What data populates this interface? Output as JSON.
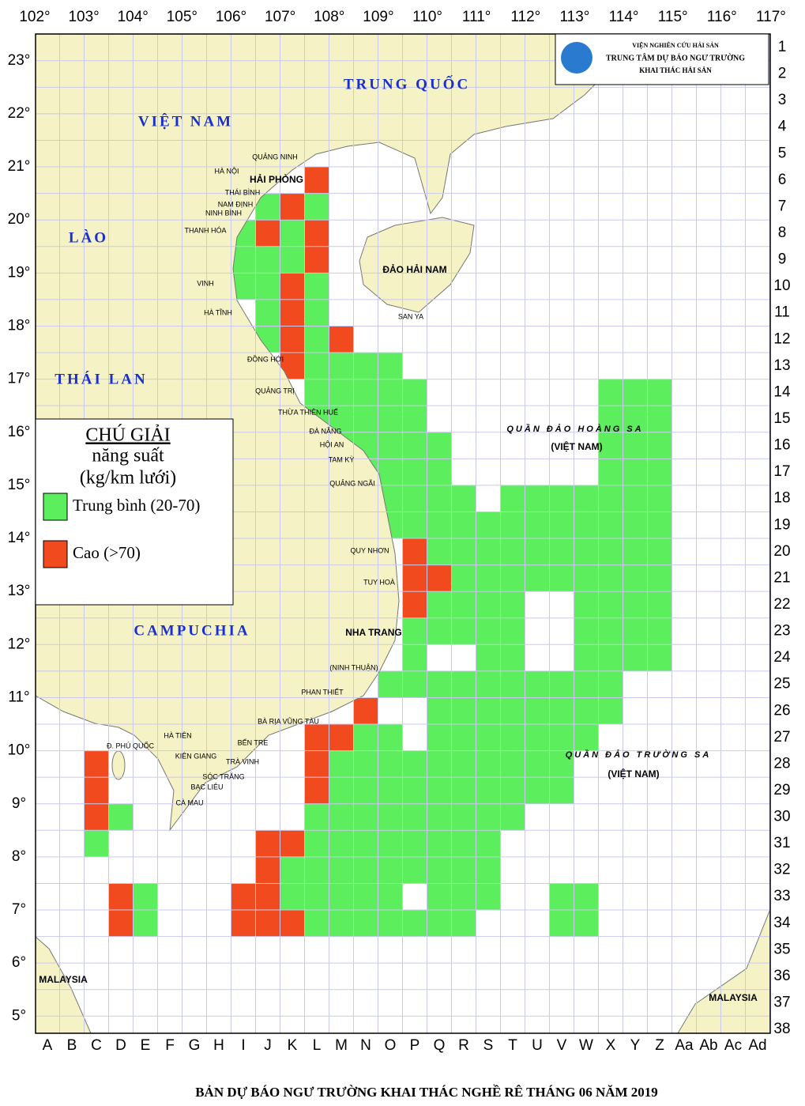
{
  "header": {
    "lines": [
      "VIỆN NGHIÊN CỨU HẢI SẢN",
      "TRUNG TÂM DỰ BÁO NGƯ TRƯỜNG",
      "KHAI THÁC HẢI SẢN"
    ]
  },
  "title": "BẢN DỰ BÁO NGƯ TRƯỜNG KHAI THÁC NGHỀ RÊ THÁNG 06 NĂM 2019",
  "lon_labels": [
    "102°",
    "103°",
    "104°",
    "105°",
    "106°",
    "107°",
    "108°",
    "109°",
    "110°",
    "111°",
    "112°",
    "113°",
    "114°",
    "115°",
    "116°",
    "117°"
  ],
  "lat_labels": [
    "23°",
    "22°",
    "21°",
    "20°",
    "19°",
    "18°",
    "17°",
    "16°",
    "15°",
    "14°",
    "13°",
    "12°",
    "11°",
    "10°",
    "9°",
    "8°",
    "7°",
    "6°",
    "5°"
  ],
  "col_labels": [
    "A",
    "B",
    "C",
    "D",
    "E",
    "F",
    "G",
    "H",
    "I",
    "J",
    "K",
    "L",
    "M",
    "N",
    "O",
    "P",
    "Q",
    "R",
    "S",
    "T",
    "U",
    "V",
    "W",
    "X",
    "Y",
    "Z",
    "Aa",
    "Ab",
    "Ac",
    "Ad"
  ],
  "row_labels": [
    1,
    2,
    3,
    4,
    5,
    6,
    7,
    8,
    9,
    10,
    11,
    12,
    13,
    14,
    15,
    16,
    17,
    18,
    19,
    20,
    21,
    22,
    23,
    24,
    25,
    26,
    27,
    28,
    29,
    30,
    31,
    32,
    33,
    34,
    35,
    36,
    37,
    38
  ],
  "places": [
    "TRUNG QUỐC",
    "VIỆT NAM",
    "LÀO",
    "THÁI LAN",
    "CAMPUCHIA",
    "ĐẢO HẢI NAM",
    "SAN YA",
    "HẢI PHÒNG",
    "NHA TRANG",
    "QUẦN ĐẢO HOÀNG SA",
    "(VIỆT NAM)",
    "QUẦN ĐẢO TRƯỜNG SA",
    "(VIỆT NAM)",
    "MALAYSIA",
    "MALAYSIA",
    "QUẢNG NINH",
    "HÀ NỘI",
    "THÁI BÌNH",
    "NAM ĐỊNH",
    "NINH BÌNH",
    "THANH HÓA",
    "VINH",
    "HÀ TĨNH",
    "ĐỒNG HỚI",
    "QUẢNG TRỊ",
    "THỪA THIÊN HUẾ",
    "ĐÀ NẴNG",
    "HỘI AN",
    "TAM KỲ",
    "QUẢNG NGÃI",
    "QUY NHƠN",
    "TUY HOÀ",
    "(NINH THUẬN)",
    "PHAN THIẾT",
    "BÀ RỊA VŨNG TÀU",
    "BẾN TRE",
    "TRÀ VINH",
    "SÓC TRĂNG",
    "BẠC LIÊU",
    "CÀ MAU",
    "KIÊN GIANG",
    "HÀ TIÊN",
    "Đ. PHÚ QUỐC"
  ],
  "legend": {
    "title": "CHÚ GIẢI",
    "lines": [
      "năng suất",
      "(kg/km lưới)"
    ],
    "items": [
      {
        "label": "Trung bình (20-70)",
        "color": "#5cee5c",
        "cells": [
          [
            "L",
            7
          ],
          [
            "J",
            7
          ],
          [
            "I",
            8
          ],
          [
            "K",
            8
          ],
          [
            "I",
            9
          ],
          [
            "J",
            9
          ],
          [
            "K",
            9
          ],
          [
            "I",
            10
          ],
          [
            "J",
            10
          ],
          [
            "L",
            10
          ],
          [
            "J",
            11
          ],
          [
            "L",
            11
          ],
          [
            "J",
            12
          ],
          [
            "L",
            12
          ],
          [
            "L",
            13
          ],
          [
            "M",
            13
          ],
          [
            "N",
            13
          ],
          [
            "O",
            13
          ],
          [
            "L",
            14
          ],
          [
            "M",
            14
          ],
          [
            "N",
            14
          ],
          [
            "O",
            14
          ],
          [
            "P",
            14
          ],
          [
            "X",
            14
          ],
          [
            "Y",
            14
          ],
          [
            "Z",
            14
          ],
          [
            "L",
            15
          ],
          [
            "M",
            15
          ],
          [
            "N",
            15
          ],
          [
            "O",
            15
          ],
          [
            "P",
            15
          ],
          [
            "X",
            15
          ],
          [
            "Y",
            15
          ],
          [
            "Z",
            15
          ],
          [
            "M",
            16
          ],
          [
            "N",
            16
          ],
          [
            "O",
            16
          ],
          [
            "P",
            16
          ],
          [
            "Q",
            16
          ],
          [
            "X",
            16
          ],
          [
            "Y",
            16
          ],
          [
            "Z",
            16
          ],
          [
            "N",
            17
          ],
          [
            "O",
            17
          ],
          [
            "P",
            17
          ],
          [
            "Q",
            17
          ],
          [
            "X",
            17
          ],
          [
            "Y",
            17
          ],
          [
            "Z",
            17
          ],
          [
            "N",
            18
          ],
          [
            "O",
            18
          ],
          [
            "P",
            18
          ],
          [
            "Q",
            18
          ],
          [
            "R",
            18
          ],
          [
            "T",
            18
          ],
          [
            "U",
            18
          ],
          [
            "V",
            18
          ],
          [
            "W",
            18
          ],
          [
            "X",
            18
          ],
          [
            "Y",
            18
          ],
          [
            "Z",
            18
          ],
          [
            "O",
            19
          ],
          [
            "P",
            19
          ],
          [
            "Q",
            19
          ],
          [
            "R",
            19
          ],
          [
            "S",
            19
          ],
          [
            "T",
            19
          ],
          [
            "U",
            19
          ],
          [
            "V",
            19
          ],
          [
            "W",
            19
          ],
          [
            "X",
            19
          ],
          [
            "Y",
            19
          ],
          [
            "Z",
            19
          ],
          [
            "Q",
            20
          ],
          [
            "R",
            20
          ],
          [
            "S",
            20
          ],
          [
            "T",
            20
          ],
          [
            "U",
            20
          ],
          [
            "V",
            20
          ],
          [
            "W",
            20
          ],
          [
            "X",
            20
          ],
          [
            "Y",
            20
          ],
          [
            "Z",
            20
          ],
          [
            "R",
            21
          ],
          [
            "S",
            21
          ],
          [
            "T",
            21
          ],
          [
            "U",
            21
          ],
          [
            "V",
            21
          ],
          [
            "W",
            21
          ],
          [
            "X",
            21
          ],
          [
            "Y",
            21
          ],
          [
            "Z",
            21
          ],
          [
            "Q",
            22
          ],
          [
            "R",
            22
          ],
          [
            "S",
            22
          ],
          [
            "T",
            22
          ],
          [
            "W",
            22
          ],
          [
            "X",
            22
          ],
          [
            "Y",
            22
          ],
          [
            "Z",
            22
          ],
          [
            "P",
            23
          ],
          [
            "Q",
            23
          ],
          [
            "R",
            23
          ],
          [
            "S",
            23
          ],
          [
            "T",
            23
          ],
          [
            "W",
            23
          ],
          [
            "X",
            23
          ],
          [
            "Y",
            23
          ],
          [
            "Z",
            23
          ],
          [
            "P",
            24
          ],
          [
            "S",
            24
          ],
          [
            "T",
            24
          ],
          [
            "W",
            24
          ],
          [
            "X",
            24
          ],
          [
            "Y",
            24
          ],
          [
            "Z",
            24
          ],
          [
            "O",
            25
          ],
          [
            "P",
            25
          ],
          [
            "Q",
            25
          ],
          [
            "R",
            25
          ],
          [
            "S",
            25
          ],
          [
            "T",
            25
          ],
          [
            "U",
            25
          ],
          [
            "V",
            25
          ],
          [
            "W",
            25
          ],
          [
            "X",
            25
          ],
          [
            "Q",
            26
          ],
          [
            "R",
            26
          ],
          [
            "S",
            26
          ],
          [
            "T",
            26
          ],
          [
            "U",
            26
          ],
          [
            "V",
            26
          ],
          [
            "W",
            26
          ],
          [
            "X",
            26
          ],
          [
            "N",
            27
          ],
          [
            "O",
            27
          ],
          [
            "Q",
            27
          ],
          [
            "R",
            27
          ],
          [
            "S",
            27
          ],
          [
            "T",
            27
          ],
          [
            "U",
            27
          ],
          [
            "V",
            27
          ],
          [
            "W",
            27
          ],
          [
            "M",
            28
          ],
          [
            "N",
            28
          ],
          [
            "O",
            28
          ],
          [
            "P",
            28
          ],
          [
            "Q",
            28
          ],
          [
            "R",
            28
          ],
          [
            "S",
            28
          ],
          [
            "T",
            28
          ],
          [
            "U",
            28
          ],
          [
            "V",
            28
          ],
          [
            "M",
            29
          ],
          [
            "N",
            29
          ],
          [
            "O",
            29
          ],
          [
            "P",
            29
          ],
          [
            "Q",
            29
          ],
          [
            "R",
            29
          ],
          [
            "S",
            29
          ],
          [
            "T",
            29
          ],
          [
            "U",
            29
          ],
          [
            "V",
            29
          ],
          [
            "D",
            30
          ],
          [
            "L",
            30
          ],
          [
            "M",
            30
          ],
          [
            "N",
            30
          ],
          [
            "O",
            30
          ],
          [
            "P",
            30
          ],
          [
            "Q",
            30
          ],
          [
            "R",
            30
          ],
          [
            "S",
            30
          ],
          [
            "T",
            30
          ],
          [
            "C",
            31
          ],
          [
            "L",
            31
          ],
          [
            "M",
            31
          ],
          [
            "N",
            31
          ],
          [
            "O",
            31
          ],
          [
            "P",
            31
          ],
          [
            "Q",
            31
          ],
          [
            "R",
            31
          ],
          [
            "S",
            31
          ],
          [
            "K",
            32
          ],
          [
            "L",
            32
          ],
          [
            "M",
            32
          ],
          [
            "N",
            32
          ],
          [
            "O",
            32
          ],
          [
            "P",
            32
          ],
          [
            "Q",
            32
          ],
          [
            "R",
            32
          ],
          [
            "S",
            32
          ],
          [
            "E",
            33
          ],
          [
            "K",
            33
          ],
          [
            "L",
            33
          ],
          [
            "M",
            33
          ],
          [
            "N",
            33
          ],
          [
            "O",
            33
          ],
          [
            "Q",
            33
          ],
          [
            "R",
            33
          ],
          [
            "S",
            33
          ],
          [
            "V",
            33
          ],
          [
            "W",
            33
          ],
          [
            "E",
            34
          ],
          [
            "L",
            34
          ],
          [
            "M",
            34
          ],
          [
            "N",
            34
          ],
          [
            "O",
            34
          ],
          [
            "P",
            34
          ],
          [
            "Q",
            34
          ],
          [
            "R",
            34
          ],
          [
            "V",
            34
          ],
          [
            "W",
            34
          ]
        ]
      },
      {
        "label": "Cao (>70)",
        "color": "#f04a1e",
        "cells": [
          [
            "L",
            6
          ],
          [
            "K",
            7
          ],
          [
            "J",
            8
          ],
          [
            "L",
            8
          ],
          [
            "L",
            9
          ],
          [
            "K",
            10
          ],
          [
            "K",
            11
          ],
          [
            "K",
            12
          ],
          [
            "M",
            12
          ],
          [
            "K",
            13
          ],
          [
            "P",
            20
          ],
          [
            "P",
            21
          ],
          [
            "Q",
            21
          ],
          [
            "P",
            22
          ],
          [
            "N",
            26
          ],
          [
            "L",
            27
          ],
          [
            "M",
            27
          ],
          [
            "C",
            28
          ],
          [
            "L",
            28
          ],
          [
            "C",
            29
          ],
          [
            "L",
            29
          ],
          [
            "C",
            30
          ],
          [
            "J",
            31
          ],
          [
            "K",
            31
          ],
          [
            "J",
            32
          ],
          [
            "D",
            33
          ],
          [
            "I",
            33
          ],
          [
            "J",
            33
          ],
          [
            "D",
            34
          ],
          [
            "I",
            34
          ],
          [
            "J",
            34
          ],
          [
            "K",
            34
          ]
        ]
      }
    ]
  }
}
